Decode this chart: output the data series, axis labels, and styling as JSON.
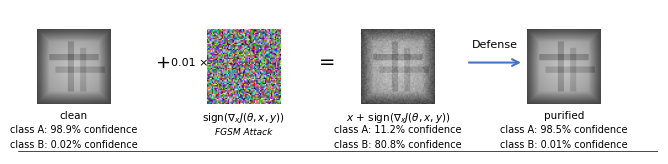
{
  "bg_color": "#ffffff",
  "plus_text": "+",
  "epsilon_text": "0.01 ×",
  "equals_text": "=",
  "defense_label": "Defense",
  "arrow_color": "#4472c4",
  "img1_label": "clean",
  "img1_a": "class A: 98.9% confidence",
  "img1_b": "class B: 0.02% confidence",
  "img2_fgsm": "FGSM Attack",
  "img3_a": "class A: 11.2% confidence",
  "img3_b": "class B: 80.8% confidence",
  "img4_label": "purified",
  "img4_a": "class A: 98.5% confidence",
  "img4_b": "class B: 0.01% confidence",
  "text_fontsize": 7.0,
  "label_fontsize": 7.5,
  "fgsm_fontsize": 6.5,
  "symbol_fontsize": 13,
  "defense_fontsize": 8,
  "math_fontsize": 7.5
}
